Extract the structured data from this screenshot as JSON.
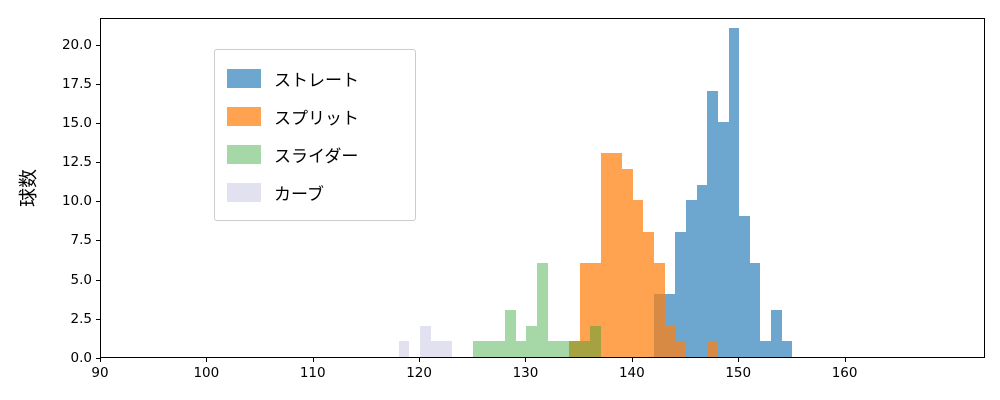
{
  "chart_data": {
    "type": "histogram",
    "title": "",
    "xlabel": "",
    "ylabel": "球数",
    "grid": false,
    "legend_position": "upper left",
    "xlim": [
      90,
      173.2
    ],
    "ylim": [
      0,
      21.7
    ],
    "bin_width": 1,
    "x_ticks": [
      {
        "value": 90,
        "label": "90"
      },
      {
        "value": 100,
        "label": "100"
      },
      {
        "value": 110,
        "label": "110"
      },
      {
        "value": 120,
        "label": "120"
      },
      {
        "value": 130,
        "label": "130"
      },
      {
        "value": 140,
        "label": "140"
      },
      {
        "value": 150,
        "label": "150"
      },
      {
        "value": 160,
        "label": "160"
      }
    ],
    "y_ticks": [
      {
        "value": 0,
        "label": "0.0"
      },
      {
        "value": 2.5,
        "label": "2.5"
      },
      {
        "value": 5,
        "label": "5.0"
      },
      {
        "value": 7.5,
        "label": "7.5"
      },
      {
        "value": 10,
        "label": "10.0"
      },
      {
        "value": 12.5,
        "label": "12.5"
      },
      {
        "value": 15,
        "label": "15.0"
      },
      {
        "value": 17.5,
        "label": "17.5"
      },
      {
        "value": 20,
        "label": "20.0"
      }
    ],
    "series": [
      {
        "key": "straight",
        "name": "ストレート",
        "color": "rgba(31,119,180,0.65)",
        "bin_start": 142,
        "counts": [
          4,
          4,
          8,
          10,
          11,
          17,
          15,
          21,
          9,
          6,
          1,
          3,
          1
        ]
      },
      {
        "key": "split",
        "name": "スプリット",
        "color": "rgba(255,127,14,0.72)",
        "bin_start": 134,
        "counts": [
          1,
          6,
          6,
          13,
          13,
          12,
          10,
          8,
          6,
          2,
          1,
          0,
          0,
          1
        ]
      },
      {
        "key": "slider",
        "name": "スライダー",
        "color": "rgba(44,160,44,0.42)",
        "bin_start": 125,
        "counts": [
          1,
          1,
          1,
          3,
          1,
          2,
          6,
          1,
          1,
          1,
          1,
          2
        ]
      },
      {
        "key": "curve",
        "name": "カーブ",
        "color": "rgba(176,176,214,0.38)",
        "bin_start": 118,
        "counts": [
          1,
          0,
          2,
          1,
          1
        ]
      }
    ]
  }
}
